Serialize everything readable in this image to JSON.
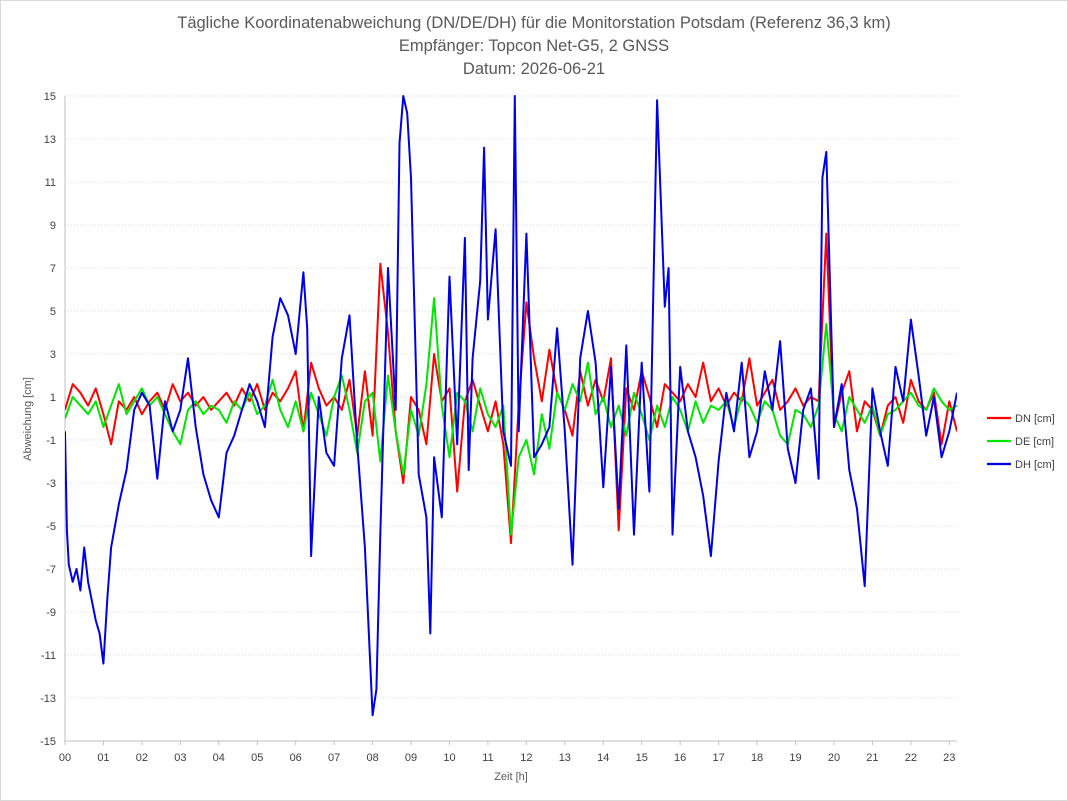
{
  "chart_data": {
    "type": "line",
    "title_lines": [
      "Tägliche Koordinatenabweichung (DN/DE/DH) für die Monitorstation Potsdam (Referenz 36,3 km)",
      "Empfänger: Topcon Net-G5, 2 GNSS",
      "Datum: 2026-06-21"
    ],
    "xlabel": "Zeit [h]",
    "ylabel": "Abweichung [cm]",
    "xlim": [
      0,
      23.2
    ],
    "ylim": [
      -15,
      15
    ],
    "x_ticks": [
      "00",
      "01",
      "02",
      "03",
      "04",
      "05",
      "06",
      "07",
      "08",
      "09",
      "10",
      "11",
      "12",
      "13",
      "14",
      "15",
      "16",
      "17",
      "18",
      "19",
      "20",
      "21",
      "22",
      "23"
    ],
    "y_ticks": [
      15,
      13,
      11,
      9,
      7,
      5,
      3,
      1,
      -1,
      -3,
      -5,
      -7,
      -9,
      -11,
      -13,
      -15
    ],
    "grid": "horizontal-dotted",
    "legend_position": "right",
    "series": [
      {
        "name": "DN [cm]",
        "color": "#ff0000",
        "x": [
          0.0,
          0.2,
          0.4,
          0.6,
          0.8,
          1.0,
          1.2,
          1.4,
          1.6,
          1.8,
          2.0,
          2.2,
          2.4,
          2.6,
          2.8,
          3.0,
          3.2,
          3.4,
          3.6,
          3.8,
          4.0,
          4.2,
          4.4,
          4.6,
          4.8,
          5.0,
          5.2,
          5.4,
          5.6,
          5.8,
          6.0,
          6.2,
          6.4,
          6.6,
          6.8,
          7.0,
          7.2,
          7.4,
          7.6,
          7.8,
          8.0,
          8.2,
          8.4,
          8.6,
          8.8,
          9.0,
          9.2,
          9.4,
          9.6,
          9.8,
          10.0,
          10.2,
          10.4,
          10.6,
          10.8,
          11.0,
          11.2,
          11.4,
          11.6,
          11.8,
          12.0,
          12.2,
          12.4,
          12.6,
          12.8,
          13.0,
          13.2,
          13.4,
          13.6,
          13.8,
          14.0,
          14.2,
          14.4,
          14.6,
          14.8,
          15.0,
          15.2,
          15.4,
          15.6,
          15.8,
          16.0,
          16.2,
          16.4,
          16.6,
          16.8,
          17.0,
          17.2,
          17.4,
          17.6,
          17.8,
          18.0,
          18.2,
          18.4,
          18.6,
          18.8,
          19.0,
          19.2,
          19.4,
          19.6,
          19.8,
          20.0,
          20.2,
          20.4,
          20.6,
          20.8,
          21.0,
          21.2,
          21.4,
          21.6,
          21.8,
          22.0,
          22.2,
          22.4,
          22.6,
          22.8,
          23.0,
          23.2
        ],
        "values": [
          0.4,
          1.6,
          1.2,
          0.6,
          1.4,
          0.2,
          -1.2,
          0.8,
          0.4,
          1.0,
          0.2,
          0.8,
          1.2,
          0.4,
          1.6,
          0.8,
          1.2,
          0.6,
          1.0,
          0.4,
          0.8,
          1.2,
          0.6,
          1.4,
          0.8,
          1.6,
          0.4,
          1.2,
          0.8,
          1.4,
          2.2,
          -0.6,
          2.6,
          1.4,
          0.6,
          1.0,
          0.4,
          1.8,
          -0.8,
          2.2,
          -0.8,
          7.2,
          4.0,
          -0.6,
          -3.0,
          1.0,
          0.4,
          -1.2,
          3.0,
          0.8,
          1.4,
          -3.4,
          0.8,
          1.8,
          0.6,
          -0.6,
          0.8,
          -1.2,
          -5.8,
          0.6,
          5.4,
          2.8,
          0.8,
          3.2,
          1.2,
          0.4,
          -0.8,
          2.2,
          0.6,
          1.8,
          0.8,
          2.8,
          -5.2,
          1.4,
          0.4,
          2.2,
          1.0,
          -0.4,
          1.6,
          1.2,
          0.8,
          1.6,
          1.0,
          2.6,
          0.8,
          1.4,
          0.6,
          1.2,
          0.8,
          2.8,
          0.6,
          1.2,
          1.8,
          0.4,
          0.8,
          1.4,
          0.6,
          1.0,
          0.8,
          8.6,
          -0.4,
          1.2,
          2.2,
          -0.6,
          0.8,
          0.4,
          -0.8,
          0.6,
          1.0,
          -0.2,
          1.8,
          0.8,
          0.4,
          1.2,
          -1.2,
          0.8,
          -0.6
        ]
      },
      {
        "name": "DE [cm]",
        "color": "#00e600",
        "x": [
          0.0,
          0.2,
          0.4,
          0.6,
          0.8,
          1.0,
          1.2,
          1.4,
          1.6,
          1.8,
          2.0,
          2.2,
          2.4,
          2.6,
          2.8,
          3.0,
          3.2,
          3.4,
          3.6,
          3.8,
          4.0,
          4.2,
          4.4,
          4.6,
          4.8,
          5.0,
          5.2,
          5.4,
          5.6,
          5.8,
          6.0,
          6.2,
          6.4,
          6.6,
          6.8,
          7.0,
          7.2,
          7.4,
          7.6,
          7.8,
          8.0,
          8.2,
          8.4,
          8.6,
          8.8,
          9.0,
          9.2,
          9.4,
          9.6,
          9.8,
          10.0,
          10.2,
          10.4,
          10.6,
          10.8,
          11.0,
          11.2,
          11.4,
          11.6,
          11.8,
          12.0,
          12.2,
          12.4,
          12.6,
          12.8,
          13.0,
          13.2,
          13.4,
          13.6,
          13.8,
          14.0,
          14.2,
          14.4,
          14.6,
          14.8,
          15.0,
          15.2,
          15.4,
          15.6,
          15.8,
          16.0,
          16.2,
          16.4,
          16.6,
          16.8,
          17.0,
          17.2,
          17.4,
          17.6,
          17.8,
          18.0,
          18.2,
          18.4,
          18.6,
          18.8,
          19.0,
          19.2,
          19.4,
          19.6,
          19.8,
          20.0,
          20.2,
          20.4,
          20.6,
          20.8,
          21.0,
          21.2,
          21.4,
          21.6,
          21.8,
          22.0,
          22.2,
          22.4,
          22.6,
          22.8,
          23.0,
          23.2
        ],
        "values": [
          0.0,
          1.0,
          0.6,
          0.2,
          0.8,
          -0.4,
          0.6,
          1.6,
          0.2,
          0.8,
          1.4,
          0.6,
          1.0,
          0.2,
          -0.6,
          -1.2,
          0.4,
          0.8,
          0.2,
          0.6,
          0.4,
          -0.2,
          0.8,
          0.4,
          1.2,
          0.2,
          0.6,
          1.8,
          0.4,
          -0.4,
          0.8,
          -0.6,
          1.2,
          0.2,
          -0.8,
          1.0,
          2.0,
          0.4,
          -1.6,
          0.8,
          1.2,
          -2.0,
          2.0,
          -0.6,
          -2.6,
          0.4,
          -0.8,
          1.6,
          5.6,
          0.6,
          -1.8,
          1.2,
          0.8,
          -0.6,
          1.4,
          0.2,
          -0.4,
          0.6,
          -5.4,
          -1.8,
          -1.0,
          -2.6,
          0.2,
          -1.4,
          1.2,
          0.4,
          1.6,
          0.8,
          2.6,
          0.2,
          1.0,
          -0.4,
          0.6,
          -0.8,
          1.2,
          0.2,
          -1.0,
          0.6,
          -0.4,
          1.0,
          0.4,
          -0.6,
          0.8,
          -0.2,
          0.6,
          0.4,
          0.8,
          -0.4,
          1.0,
          0.6,
          -0.2,
          0.8,
          0.4,
          -0.8,
          -1.2,
          0.4,
          0.2,
          -0.4,
          0.6,
          4.4,
          0.2,
          -0.6,
          1.0,
          0.4,
          -0.2,
          0.6,
          -0.8,
          0.2,
          0.4,
          0.8,
          1.2,
          0.6,
          0.4,
          1.4,
          0.8,
          0.4,
          0.6
        ]
      },
      {
        "name": "DH [cm]",
        "color": "#0000e6",
        "x": [
          0.0,
          0.05,
          0.1,
          0.2,
          0.3,
          0.4,
          0.5,
          0.6,
          0.8,
          0.9,
          1.0,
          1.1,
          1.2,
          1.4,
          1.6,
          1.8,
          2.0,
          2.2,
          2.4,
          2.6,
          2.8,
          3.0,
          3.2,
          3.4,
          3.6,
          3.8,
          4.0,
          4.2,
          4.4,
          4.6,
          4.8,
          5.0,
          5.2,
          5.4,
          5.6,
          5.8,
          6.0,
          6.2,
          6.3,
          6.4,
          6.6,
          6.8,
          7.0,
          7.2,
          7.4,
          7.6,
          7.8,
          8.0,
          8.1,
          8.2,
          8.4,
          8.6,
          8.7,
          8.8,
          8.9,
          9.0,
          9.2,
          9.4,
          9.5,
          9.6,
          9.8,
          10.0,
          10.2,
          10.4,
          10.5,
          10.6,
          10.8,
          10.9,
          11.0,
          11.2,
          11.4,
          11.6,
          11.7,
          11.8,
          12.0,
          12.2,
          12.4,
          12.6,
          12.8,
          13.0,
          13.2,
          13.4,
          13.6,
          13.8,
          14.0,
          14.2,
          14.4,
          14.6,
          14.8,
          15.0,
          15.2,
          15.4,
          15.6,
          15.7,
          15.8,
          16.0,
          16.2,
          16.4,
          16.6,
          16.8,
          17.0,
          17.2,
          17.4,
          17.6,
          17.8,
          18.0,
          18.2,
          18.4,
          18.6,
          18.8,
          19.0,
          19.2,
          19.4,
          19.6,
          19.7,
          19.8,
          20.0,
          20.2,
          20.4,
          20.6,
          20.8,
          21.0,
          21.2,
          21.4,
          21.6,
          21.8,
          22.0,
          22.2,
          22.4,
          22.6,
          22.8,
          23.0,
          23.2
        ],
        "values": [
          -0.6,
          -5.2,
          -6.8,
          -7.6,
          -7.0,
          -8.0,
          -6.0,
          -7.6,
          -9.4,
          -10.0,
          -11.4,
          -8.4,
          -6.0,
          -4.0,
          -2.4,
          0.4,
          1.2,
          0.6,
          -2.8,
          0.8,
          -0.6,
          0.4,
          2.8,
          -0.4,
          -2.6,
          -3.8,
          -4.6,
          -1.6,
          -0.8,
          0.4,
          1.6,
          0.8,
          -0.4,
          3.8,
          5.6,
          4.8,
          3.0,
          6.8,
          4.2,
          -6.4,
          1.0,
          -1.6,
          -2.2,
          2.8,
          4.8,
          -1.2,
          -6.0,
          -13.8,
          -12.6,
          -5.4,
          7.0,
          0.4,
          12.8,
          15.0,
          14.2,
          11.2,
          -2.6,
          -4.6,
          -10.0,
          -1.8,
          -4.6,
          6.6,
          -1.2,
          8.4,
          -2.4,
          2.8,
          6.4,
          12.6,
          4.6,
          8.8,
          -0.6,
          -2.2,
          15.0,
          -0.6,
          8.6,
          -1.8,
          -1.2,
          -0.4,
          4.2,
          -0.6,
          -6.8,
          2.8,
          5.0,
          2.6,
          -3.2,
          2.4,
          -4.2,
          3.4,
          -5.4,
          2.6,
          -3.4,
          14.8,
          5.2,
          7.0,
          -5.4,
          2.4,
          -0.6,
          -1.8,
          -3.6,
          -6.4,
          -2.0,
          1.2,
          -0.6,
          2.6,
          -1.8,
          -0.6,
          2.2,
          0.4,
          3.6,
          -1.4,
          -3.0,
          0.4,
          1.4,
          -2.8,
          11.2,
          12.4,
          -0.4,
          1.6,
          -2.4,
          -4.2,
          -7.8,
          1.4,
          -0.6,
          -2.2,
          2.4,
          0.8,
          4.6,
          2.0,
          -0.8,
          1.0,
          -1.8,
          -0.6,
          1.2
        ]
      }
    ]
  }
}
